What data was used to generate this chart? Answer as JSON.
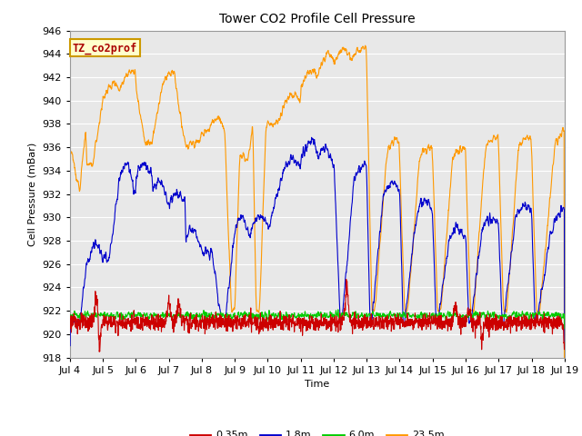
{
  "title": "Tower CO2 Profile Cell Pressure",
  "xlabel": "Time",
  "ylabel": "Cell Pressure (mBar)",
  "ylim": [
    918,
    946
  ],
  "xlim": [
    0,
    15
  ],
  "x_tick_positions": [
    0,
    1,
    2,
    3,
    4,
    5,
    6,
    7,
    8,
    9,
    10,
    11,
    12,
    13,
    14,
    15
  ],
  "x_tick_labels": [
    "Jul 4",
    "Jul 5",
    "Jul 6",
    "Jul 7",
    "Jul 8",
    "Jul 9",
    "Jul 10",
    "Jul 11",
    "Jul 12",
    "Jul 13",
    "Jul 14",
    "Jul 15",
    "Jul 16",
    "Jul 17",
    "Jul 18",
    "Jul 19"
  ],
  "ytick_step": 2,
  "colors": {
    "0.35m": "#cc0000",
    "1.8m": "#0000cc",
    "6.0m": "#00cc00",
    "23.5m": "#ff9900"
  },
  "legend_labels": [
    "0.35m",
    "1.8m",
    "6.0m",
    "23.5m"
  ],
  "annotation_text": "TZ_co2prof",
  "annotation_color": "#aa0000",
  "annotation_bg": "#ffffcc",
  "annotation_border": "#cc9900",
  "plot_bg_color": "#e8e8e8",
  "grid_color": "#ffffff",
  "linewidth": 0.8,
  "title_fontsize": 10,
  "label_fontsize": 8,
  "tick_fontsize": 8,
  "legend_fontsize": 8,
  "n_points": 2000
}
